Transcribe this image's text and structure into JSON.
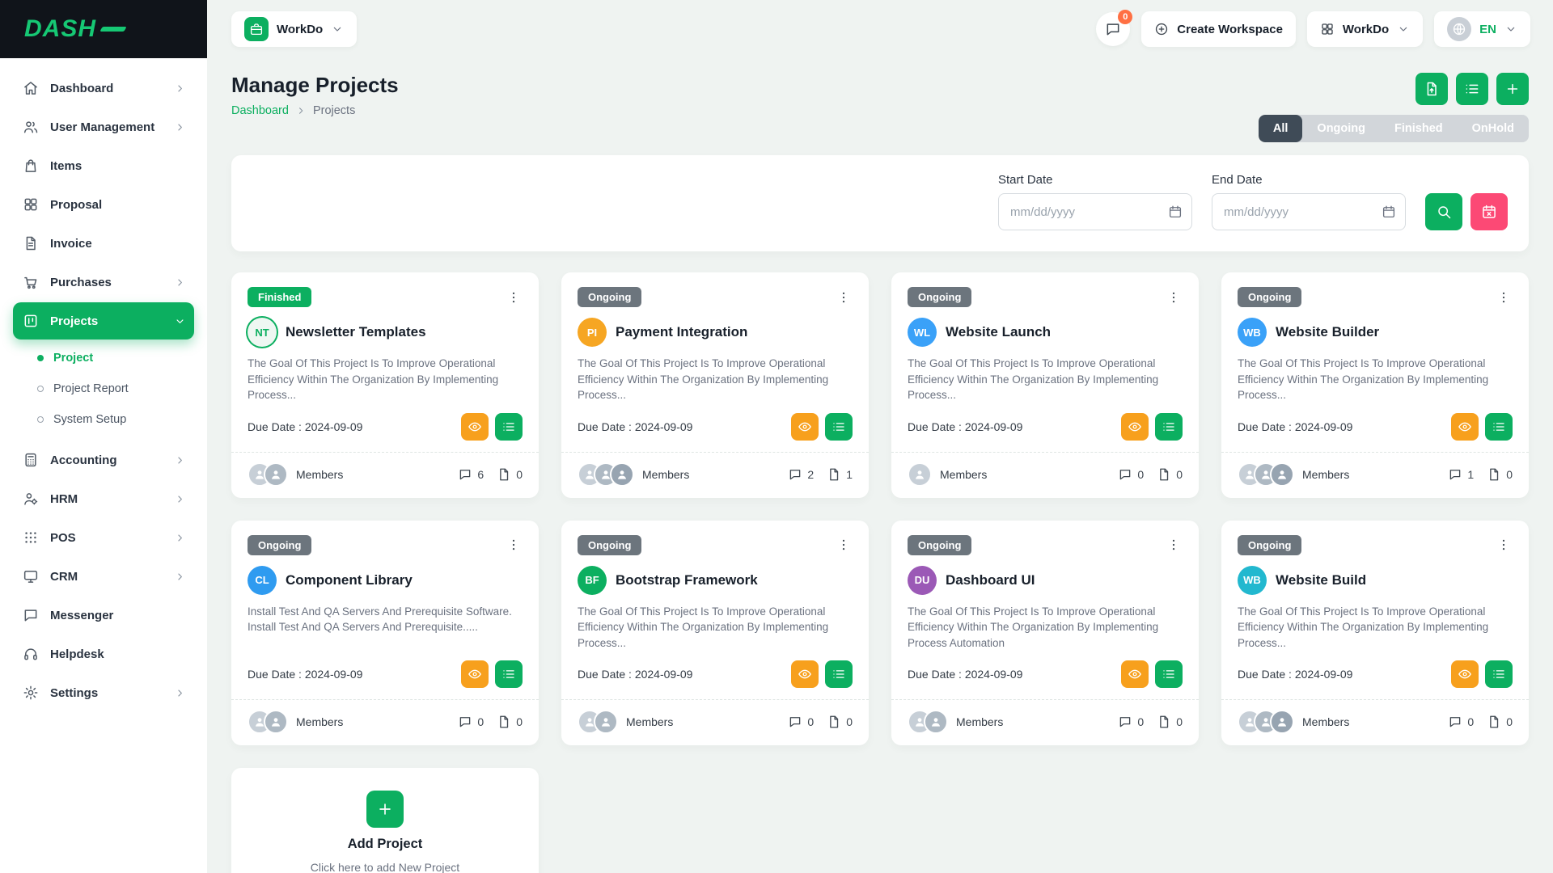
{
  "theme": {
    "primary": "#0caf60",
    "warning": "#f7a01d",
    "pink": "#fc4975",
    "dark": "#10141a",
    "badge_orange": "#ff7043",
    "status_gray": "#6c757d",
    "tab_active": "#3f4b57",
    "tab_bg": "#d2d6da",
    "body_bg": "#eff3f1"
  },
  "brand": {
    "logo_text": "DASH"
  },
  "topbar": {
    "workspace_switcher": {
      "label": "WorkDo",
      "icon": "briefcase"
    },
    "messages": {
      "badge": "0",
      "icon": "chat"
    },
    "create_workspace": {
      "label": "Create Workspace",
      "icon": "plus-circle"
    },
    "workspace_dropdown": {
      "label": "WorkDo",
      "icon": "grid"
    },
    "language": {
      "label": "EN",
      "icon": "globe"
    }
  },
  "sidebar": {
    "items": [
      {
        "label": "Dashboard",
        "icon": "home",
        "chevron": true
      },
      {
        "label": "User Management",
        "icon": "users",
        "chevron": true
      },
      {
        "label": "Items",
        "icon": "bag"
      },
      {
        "label": "Proposal",
        "icon": "grid"
      },
      {
        "label": "Invoice",
        "icon": "file-lines"
      },
      {
        "label": "Purchases",
        "icon": "cart",
        "chevron": true
      },
      {
        "label": "Projects",
        "icon": "kanban",
        "chevron": true,
        "active": true,
        "expanded": true,
        "children": [
          {
            "label": "Project",
            "active": true
          },
          {
            "label": "Project Report"
          },
          {
            "label": "System Setup"
          }
        ]
      },
      {
        "label": "Accounting",
        "icon": "calculator",
        "chevron": true
      },
      {
        "label": "HRM",
        "icon": "user-cog",
        "chevron": true
      },
      {
        "label": "POS",
        "icon": "dots-grid",
        "chevron": true
      },
      {
        "label": "CRM",
        "icon": "monitor",
        "chevron": true
      },
      {
        "label": "Messenger",
        "icon": "chat"
      },
      {
        "label": "Helpdesk",
        "icon": "headset"
      },
      {
        "label": "Settings",
        "icon": "gear",
        "chevron": true
      }
    ]
  },
  "page": {
    "title": "Manage Projects",
    "breadcrumb": [
      "Dashboard",
      "Projects"
    ]
  },
  "header_actions": [
    {
      "name": "export-projects-button",
      "icon": "file-export"
    },
    {
      "name": "list-view-button",
      "icon": "list"
    },
    {
      "name": "new-project-button",
      "icon": "plus"
    }
  ],
  "filters": {
    "tabs": [
      {
        "label": "All",
        "active": true
      },
      {
        "label": "Ongoing"
      },
      {
        "label": "Finished"
      },
      {
        "label": "OnHold"
      }
    ],
    "start_date_label": "Start Date",
    "end_date_label": "End Date",
    "date_placeholder": "mm/dd/yyyy"
  },
  "labels": {
    "members": "Members"
  },
  "cards": [
    {
      "status": "Finished",
      "status_color": "#0caf60",
      "initials": "NT",
      "avatar_bg": "#eef7f2",
      "avatar_color": "#0caf60",
      "avatar_ring": true,
      "title": "Newsletter Templates",
      "description": "The Goal Of This Project Is To Improve Operational Efficiency Within The Organization By Implementing Process...",
      "due": "Due Date : 2024-09-09",
      "members": 2,
      "comments": 6,
      "files": 0
    },
    {
      "status": "Ongoing",
      "status_color": "#6c757d",
      "initials": "PI",
      "avatar_bg": "#f6a623",
      "avatar_color": "#ffffff",
      "title": "Payment Integration",
      "description": "The Goal Of This Project Is To Improve Operational Efficiency Within The Organization By Implementing Process...",
      "due": "Due Date : 2024-09-09",
      "members": 3,
      "comments": 2,
      "files": 1
    },
    {
      "status": "Ongoing",
      "status_color": "#6c757d",
      "initials": "WL",
      "avatar_bg": "#3aa1f8",
      "avatar_color": "#ffffff",
      "title": "Website Launch",
      "description": "The Goal Of This Project Is To Improve Operational Efficiency Within The Organization By Implementing Process...",
      "due": "Due Date : 2024-09-09",
      "members": 1,
      "comments": 0,
      "files": 0
    },
    {
      "status": "Ongoing",
      "status_color": "#6c757d",
      "initials": "WB",
      "avatar_bg": "#3aa1f8",
      "avatar_color": "#ffffff",
      "title": "Website Builder",
      "description": "The Goal Of This Project Is To Improve Operational Efficiency Within The Organization By Implementing Process...",
      "due": "Due Date : 2024-09-09",
      "members": 3,
      "comments": 1,
      "files": 0
    },
    {
      "status": "Ongoing",
      "status_color": "#6c757d",
      "initials": "CL",
      "avatar_bg": "#2f9bf0",
      "avatar_color": "#ffffff",
      "title": "Component Library",
      "description": "Install Test And QA Servers And Prerequisite Software. Install Test And QA Servers And Prerequisite.....",
      "due": "Due Date : 2024-09-09",
      "members": 2,
      "comments": 0,
      "files": 0
    },
    {
      "status": "Ongoing",
      "status_color": "#6c757d",
      "initials": "BF",
      "avatar_bg": "#0caf60",
      "avatar_color": "#ffffff",
      "title": "Bootstrap Framework",
      "description": "The Goal Of This Project Is To Improve Operational Efficiency Within The Organization By Implementing Process...",
      "due": "Due Date : 2024-09-09",
      "members": 2,
      "comments": 0,
      "files": 0
    },
    {
      "status": "Ongoing",
      "status_color": "#6c757d",
      "initials": "DU",
      "avatar_bg": "#9b59b6",
      "avatar_color": "#ffffff",
      "title": "Dashboard UI",
      "description": "The Goal Of This Project Is To Improve Operational Efficiency Within The Organization By Implementing Process Automation",
      "due": "Due Date : 2024-09-09",
      "members": 2,
      "comments": 0,
      "files": 0
    },
    {
      "status": "Ongoing",
      "status_color": "#6c757d",
      "initials": "WB",
      "avatar_bg": "#22b8cf",
      "avatar_color": "#ffffff",
      "title": "Website Build",
      "description": "The Goal Of This Project Is To Improve Operational Efficiency Within The Organization By Implementing Process...",
      "due": "Due Date : 2024-09-09",
      "members": 3,
      "comments": 0,
      "files": 0
    }
  ],
  "add_project": {
    "title": "Add Project",
    "subtitle": "Click here to add New Project"
  }
}
